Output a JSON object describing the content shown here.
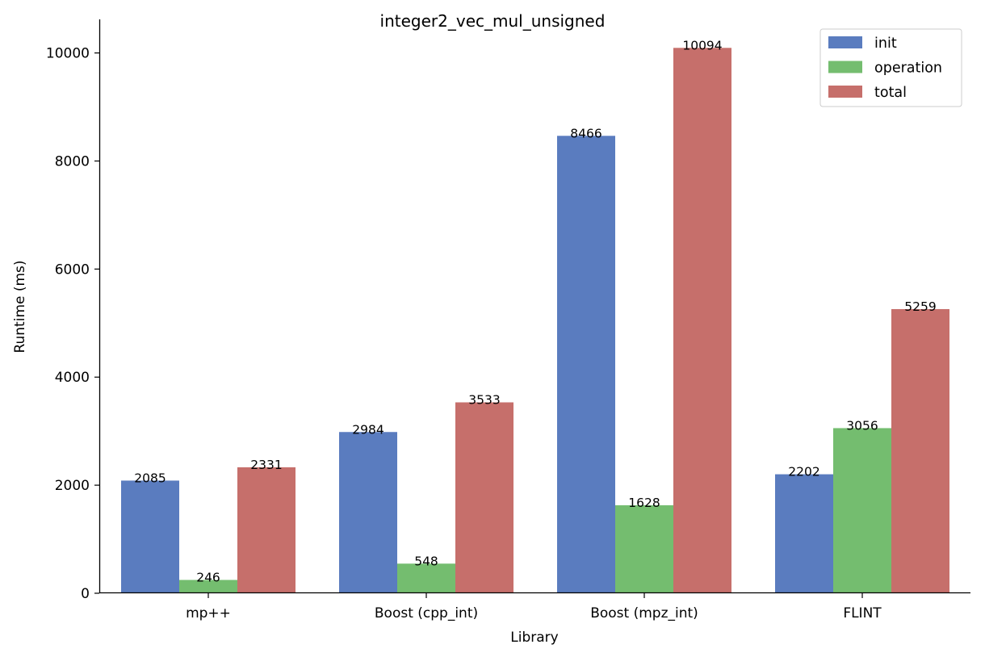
{
  "chart_data": {
    "type": "bar",
    "title": "integer2_vec_mul_unsigned",
    "xlabel": "Library",
    "ylabel": "Runtime (ms)",
    "categories": [
      "mp++",
      "Boost (cpp_int)",
      "Boost (mpz_int)",
      "FLINT"
    ],
    "series": [
      {
        "name": "init",
        "values": [
          2085,
          2984,
          8466,
          2202
        ],
        "color": "#5a7cbf"
      },
      {
        "name": "operation",
        "values": [
          246,
          548,
          1628,
          3056
        ],
        "color": "#74bd6f"
      },
      {
        "name": "total",
        "values": [
          2331,
          3533,
          10094,
          5259
        ],
        "color": "#c66f6b"
      }
    ],
    "ylim": [
      0,
      10600
    ],
    "yticks": [
      0,
      2000,
      4000,
      6000,
      8000,
      10000
    ],
    "grid": false,
    "legend_position": "top-right",
    "data_labels": true
  }
}
